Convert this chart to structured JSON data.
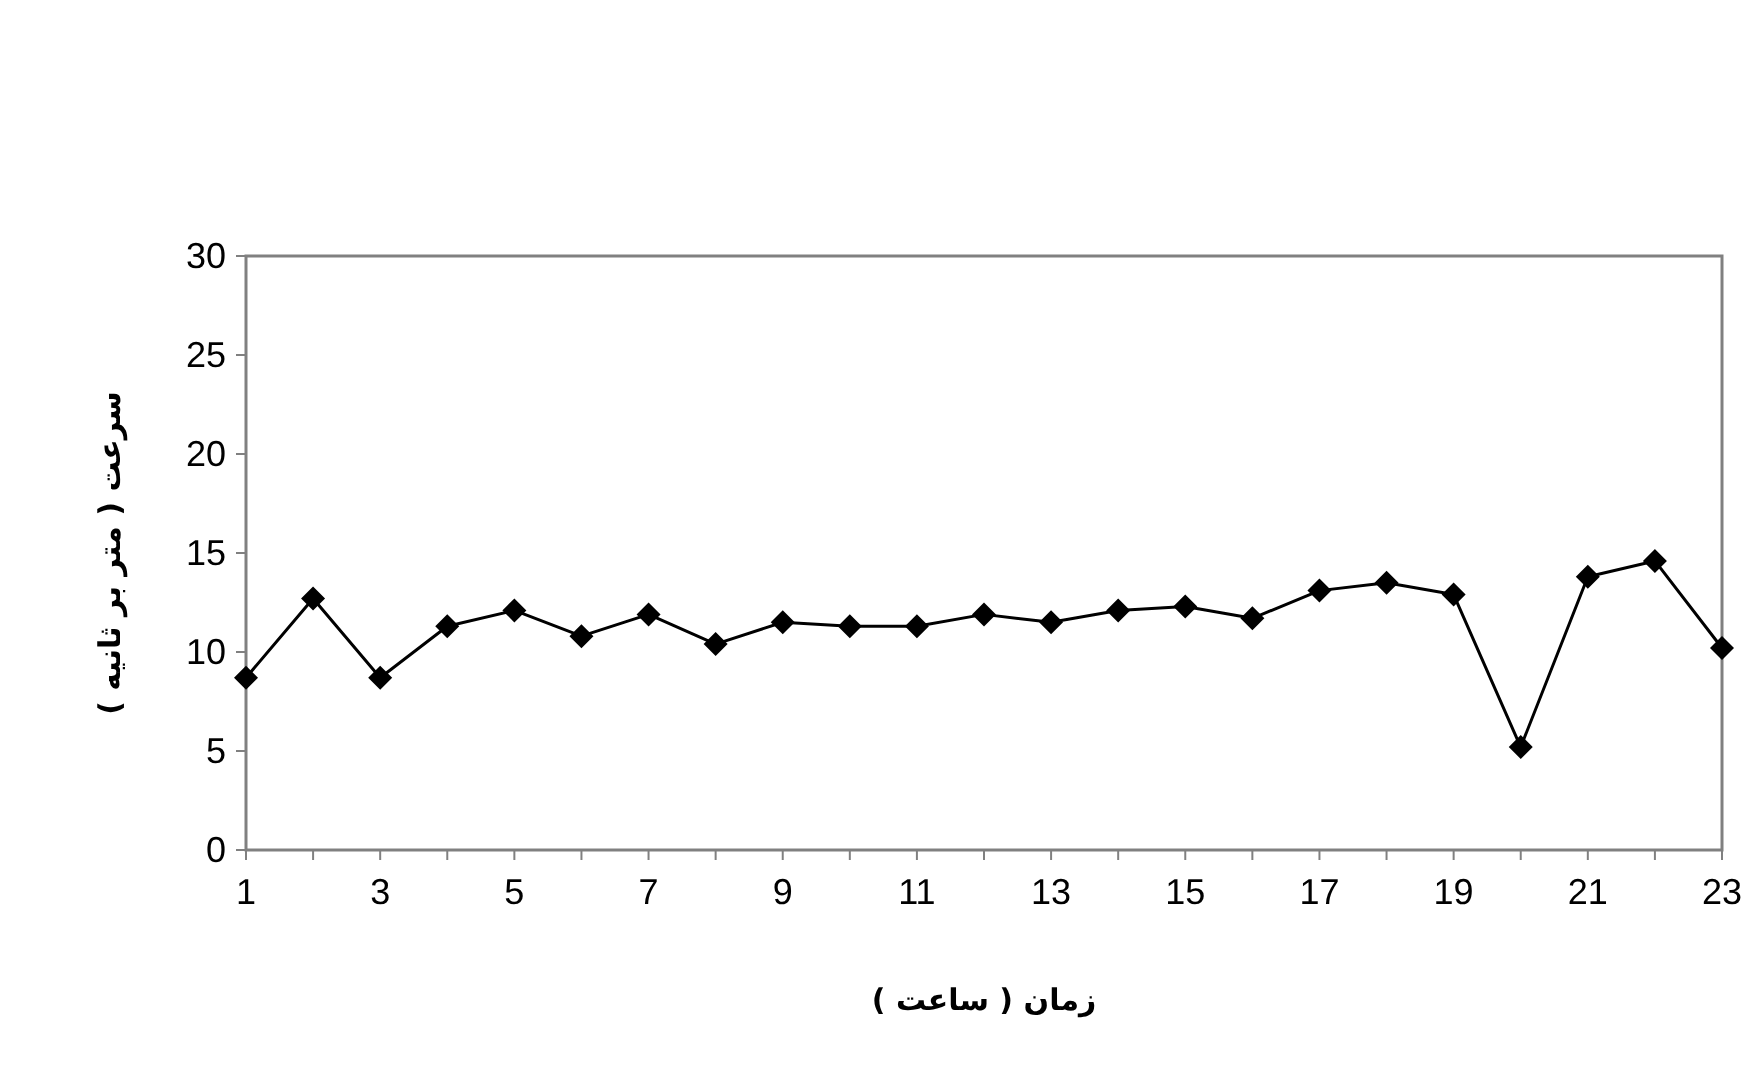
{
  "chart_data": {
    "type": "line",
    "xlabel": "زمان ( ساعت )",
    "ylabel": "سرعت ( متر بر ثانیه )",
    "x": [
      1,
      2,
      3,
      4,
      5,
      6,
      7,
      8,
      9,
      10,
      11,
      12,
      13,
      14,
      15,
      16,
      17,
      18,
      19,
      20,
      21,
      22,
      23
    ],
    "series": [
      {
        "color": "#000000",
        "values": [
          8.7,
          12.7,
          8.7,
          11.3,
          12.1,
          10.8,
          11.9,
          10.4,
          11.5,
          11.3,
          11.3,
          11.9,
          11.5,
          12.1,
          12.3,
          11.7,
          13.1,
          13.5,
          12.9,
          5.2,
          13.8,
          14.6,
          10.2
        ]
      }
    ],
    "xlim": [
      1,
      23
    ],
    "xticks": [
      1,
      {
        "value": 2,
        "label": null
      },
      3,
      {
        "value": 4,
        "label": null
      },
      5,
      {
        "value": 6,
        "label": null
      },
      7,
      {
        "value": 8,
        "label": null
      },
      9,
      {
        "value": 10,
        "label": null
      },
      11,
      {
        "value": 12,
        "label": null
      },
      13,
      {
        "value": 14,
        "label": null
      },
      15,
      {
        "value": 16,
        "label": null
      },
      17,
      {
        "value": 18,
        "label": null
      },
      19,
      {
        "value": 20,
        "label": null
      },
      21,
      {
        "value": 22,
        "label": null
      },
      23
    ],
    "ylim": [
      0,
      30
    ],
    "yticks": [
      0,
      5,
      10,
      15,
      20,
      25,
      30
    ],
    "grid": false,
    "marker": "diamond",
    "line_style": "solid"
  }
}
